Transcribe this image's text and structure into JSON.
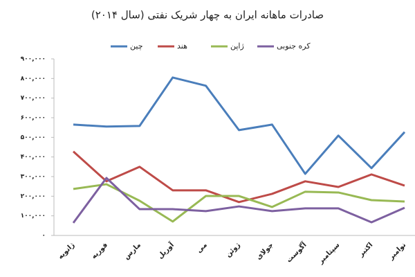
{
  "chart_data": {
    "type": "line",
    "title": "صادرات ماهانه ایران به چهار شریک نفتی (سال ۲۰۱۴)",
    "categories": [
      "ژانویه",
      "فوریه",
      "مارس",
      "آوریل",
      "می",
      "ژوئن",
      "جولای",
      "آگوست",
      "سپتامبر",
      "اکتبر",
      "نوامبر"
    ],
    "series": [
      {
        "name": "چین",
        "color": "#4a7ebb",
        "values": [
          565000,
          555000,
          558000,
          805000,
          763000,
          537000,
          565000,
          314000,
          509000,
          343000,
          527000
        ]
      },
      {
        "name": "هند",
        "color": "#be4b48",
        "values": [
          428000,
          276000,
          350000,
          230000,
          230000,
          170000,
          212000,
          276000,
          247000,
          311000,
          254000
        ]
      },
      {
        "name": "ژاپن",
        "color": "#98b954",
        "values": [
          237000,
          261000,
          177000,
          71000,
          201000,
          201000,
          145000,
          223000,
          219000,
          180000,
          173000
        ]
      },
      {
        "name": "کره جنوبی",
        "color": "#7d60a0",
        "values": [
          64000,
          293000,
          134000,
          134000,
          124000,
          148000,
          124000,
          138000,
          138000,
          67000,
          141000
        ]
      }
    ],
    "ylim": [
      0,
      900000
    ],
    "yticks": [
      {
        "value": 0,
        "label": "۰"
      },
      {
        "value": 100000,
        "label": "۱۰۰,۰۰۰"
      },
      {
        "value": 200000,
        "label": "۲۰۰,۰۰۰"
      },
      {
        "value": 300000,
        "label": "۳۰۰,۰۰۰"
      },
      {
        "value": 400000,
        "label": "۴۰۰,۰۰۰"
      },
      {
        "value": 500000,
        "label": "۵۰۰,۰۰۰"
      },
      {
        "value": 600000,
        "label": "۶۰۰,۰۰۰"
      },
      {
        "value": 700000,
        "label": "۷۰۰,۰۰۰"
      },
      {
        "value": 800000,
        "label": "۸۰۰,۰۰۰"
      },
      {
        "value": 900000,
        "label": "۹۰۰,۰۰۰"
      }
    ],
    "grid": false
  }
}
